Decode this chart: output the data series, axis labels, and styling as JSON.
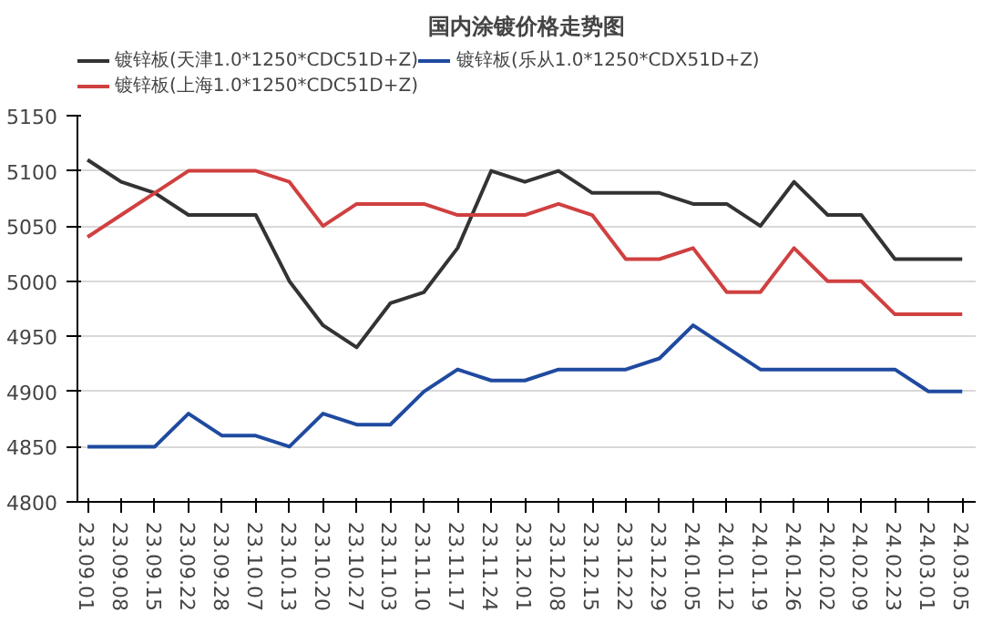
{
  "chart_data": {
    "type": "line",
    "title": "国内涂镀价格走势图",
    "categories": [
      "23.09.01",
      "23.09.08",
      "23.09.15",
      "23.09.22",
      "23.09.28",
      "23.10.07",
      "23.10.13",
      "23.10.20",
      "23.10.27",
      "23.11.03",
      "23.11.10",
      "23.11.17",
      "23.11.24",
      "23.12.01",
      "23.12.08",
      "23.12.15",
      "23.12.22",
      "23.12.29",
      "24.01.05",
      "24.01.12",
      "24.01.19",
      "24.01.26",
      "24.02.02",
      "24.02.09",
      "24.02.23",
      "24.03.01",
      "24.03.05"
    ],
    "series": [
      {
        "name": "镀锌板(天津1.0*1250*CDC51D+Z)",
        "color": "#333333",
        "values": [
          5110,
          5090,
          5080,
          5060,
          5060,
          5060,
          5000,
          4960,
          4940,
          4980,
          4990,
          5030,
          5100,
          5090,
          5100,
          5080,
          5080,
          5080,
          5070,
          5070,
          5050,
          5090,
          5060,
          5060,
          5020,
          5020,
          5020
        ]
      },
      {
        "name": "镀锌板(上海1.0*1250*CDC51D+Z)",
        "color": "#d04040",
        "values": [
          5040,
          5060,
          5080,
          5100,
          5100,
          5100,
          5090,
          5050,
          5070,
          5070,
          5070,
          5060,
          5060,
          5060,
          5070,
          5060,
          5020,
          5020,
          5030,
          4990,
          4990,
          5030,
          5000,
          5000,
          4970,
          4970,
          4970
        ]
      },
      {
        "name": "镀锌板(乐从1.0*1250*CDX51D+Z)",
        "color": "#1f4aa0",
        "values": [
          4850,
          4850,
          4850,
          4880,
          4860,
          4860,
          4850,
          4880,
          4870,
          4870,
          4900,
          4920,
          4910,
          4910,
          4920,
          4920,
          4920,
          4930,
          4960,
          4940,
          4920,
          4920,
          4920,
          4920,
          4920,
          4900,
          4900
        ]
      }
    ],
    "ylim": [
      4800,
      5150
    ],
    "yticks": [
      4800,
      4850,
      4900,
      4950,
      5000,
      5050,
      5100,
      5150
    ],
    "grid": "y",
    "legend": "top",
    "marker": "none",
    "line_style": "solid"
  }
}
